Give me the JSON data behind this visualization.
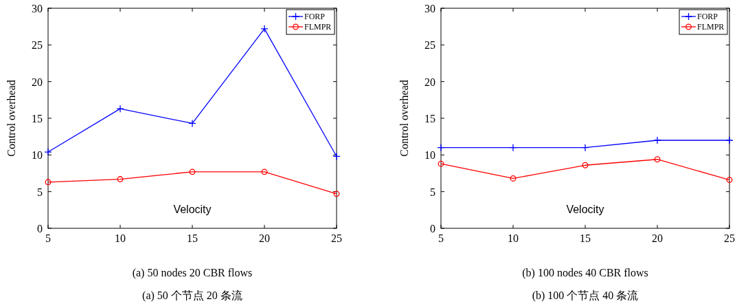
{
  "chart_data": [
    {
      "type": "line",
      "xlabel": "Velocity",
      "ylabel": "Control overhead",
      "x": [
        5,
        10,
        15,
        20,
        25
      ],
      "xlim": [
        5,
        25
      ],
      "xticks": [
        5,
        10,
        15,
        20,
        25
      ],
      "ylim": [
        0,
        30
      ],
      "yticks": [
        0,
        5,
        10,
        15,
        20,
        25,
        30
      ],
      "legend": "top right",
      "series": [
        {
          "name": "FORP",
          "color": "#0000ff",
          "marker": "cross",
          "values": [
            10.4,
            16.3,
            14.3,
            27.2,
            9.8
          ]
        },
        {
          "name": "FLMPR",
          "color": "#ff0000",
          "marker": "circle",
          "values": [
            6.3,
            6.7,
            7.7,
            7.7,
            4.7
          ]
        }
      ],
      "annotations": [
        "(a) 50 nodes 20 CBR flows",
        "(a) 50 个节点 20 条流"
      ]
    },
    {
      "type": "line",
      "xlabel": "Velocity",
      "ylabel": "Control overhead",
      "x": [
        5,
        10,
        15,
        20,
        25
      ],
      "xlim": [
        5,
        25
      ],
      "xticks": [
        5,
        10,
        15,
        20,
        25
      ],
      "ylim": [
        0,
        30
      ],
      "yticks": [
        0,
        5,
        10,
        15,
        20,
        25,
        30
      ],
      "legend": "top right",
      "series": [
        {
          "name": "FORP",
          "color": "#0000ff",
          "marker": "cross",
          "values": [
            11,
            11,
            11,
            12,
            12
          ]
        },
        {
          "name": "FLMPR",
          "color": "#ff0000",
          "marker": "circle",
          "values": [
            8.8,
            6.8,
            8.6,
            9.4,
            6.6
          ]
        }
      ],
      "annotations": [
        "(b) 100 nodes 40 CBR flows",
        "(b) 100 个节点 40 条流"
      ]
    }
  ]
}
